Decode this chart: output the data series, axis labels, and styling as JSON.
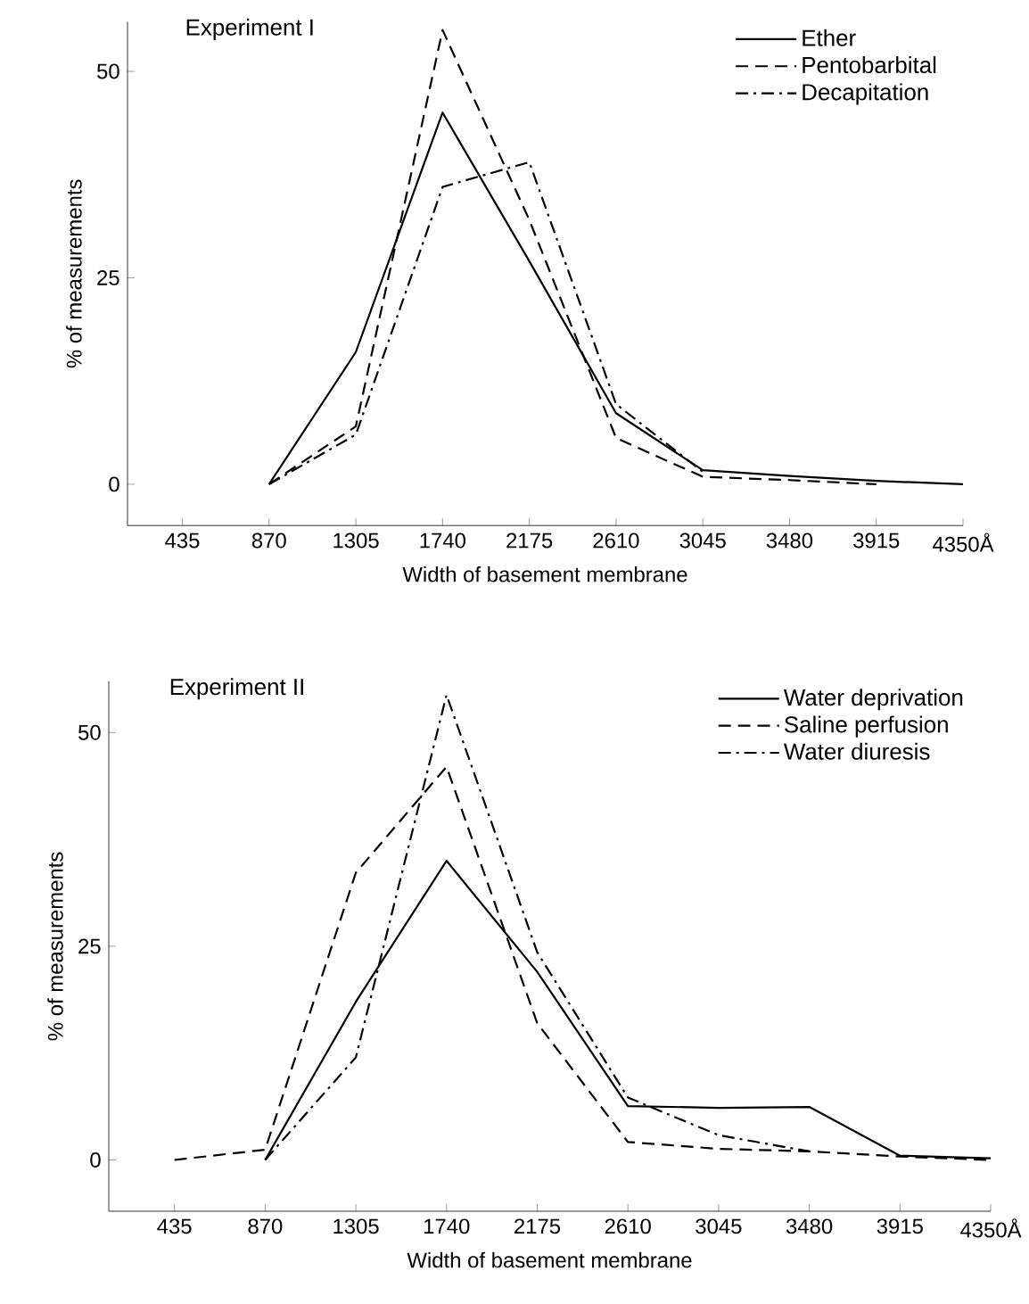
{
  "chart_data": [
    {
      "type": "line",
      "title": "Experiment I",
      "xlabel": "Width of basement membrane",
      "ylabel": "% of measurements",
      "xlim": [
        160,
        4350
      ],
      "ylim": [
        -5,
        56
      ],
      "xticks": [
        435,
        870,
        1305,
        1740,
        2175,
        2610,
        3045,
        3480,
        3915,
        {
          "value": 4350,
          "label": "4350Å"
        }
      ],
      "yticks": [
        0,
        25,
        50
      ],
      "legend": "top right",
      "series": [
        {
          "name": "Ether",
          "color": "#000000",
          "line_style": "solid",
          "x": [
            870,
            1305,
            1740,
            2175,
            2610,
            3045,
            3480,
            3915,
            4350
          ],
          "values": [
            0,
            16,
            45,
            27,
            8.6,
            1.7,
            1,
            0.4,
            0
          ]
        },
        {
          "name": "Pentobarbital",
          "color": "#000000",
          "line_style": "dashed",
          "x": [
            870,
            1305,
            1740,
            2175,
            2610,
            3045,
            3480,
            3915
          ],
          "values": [
            0,
            7,
            55,
            32,
            5.6,
            0.9,
            0.5,
            0
          ]
        },
        {
          "name": "Decapitation",
          "color": "#000000",
          "line_style": "dashdot",
          "x": [
            870,
            1305,
            1740,
            2175,
            2610,
            3045
          ],
          "values": [
            0,
            6,
            36,
            39,
            9.7,
            1.5
          ]
        }
      ]
    },
    {
      "type": "line",
      "title": "Experiment II",
      "xlabel": "Width of basement membrane",
      "ylabel": "% of measurements",
      "xlim": [
        120,
        4350
      ],
      "ylim": [
        -6,
        56
      ],
      "xticks": [
        435,
        870,
        1305,
        1740,
        2175,
        2610,
        3045,
        3480,
        3915,
        {
          "value": 4350,
          "label": "4350Å"
        }
      ],
      "yticks": [
        0,
        25,
        50
      ],
      "legend": "top right",
      "series": [
        {
          "name": "Water deprivation",
          "color": "#000000",
          "line_style": "solid",
          "x": [
            870,
            1305,
            1740,
            2175,
            2610,
            3045,
            3480,
            3915,
            4350
          ],
          "values": [
            0,
            18.5,
            35,
            22,
            6.3,
            6.1,
            6.2,
            0.5,
            0.2
          ]
        },
        {
          "name": "Saline perfusion",
          "color": "#000000",
          "line_style": "dashed",
          "x": [
            435,
            870,
            1305,
            1740,
            2175,
            2610,
            3045,
            3480,
            3915,
            4350
          ],
          "values": [
            0,
            1.2,
            33.6,
            46,
            16,
            2.1,
            1.3,
            1,
            0.4,
            0
          ]
        },
        {
          "name": "Water diuresis",
          "color": "#000000",
          "line_style": "dashdot",
          "x": [
            870,
            1305,
            1740,
            2175,
            2610,
            3045,
            3480
          ],
          "values": [
            0,
            12,
            54.4,
            24.3,
            7.3,
            2.9,
            1
          ]
        }
      ]
    }
  ]
}
